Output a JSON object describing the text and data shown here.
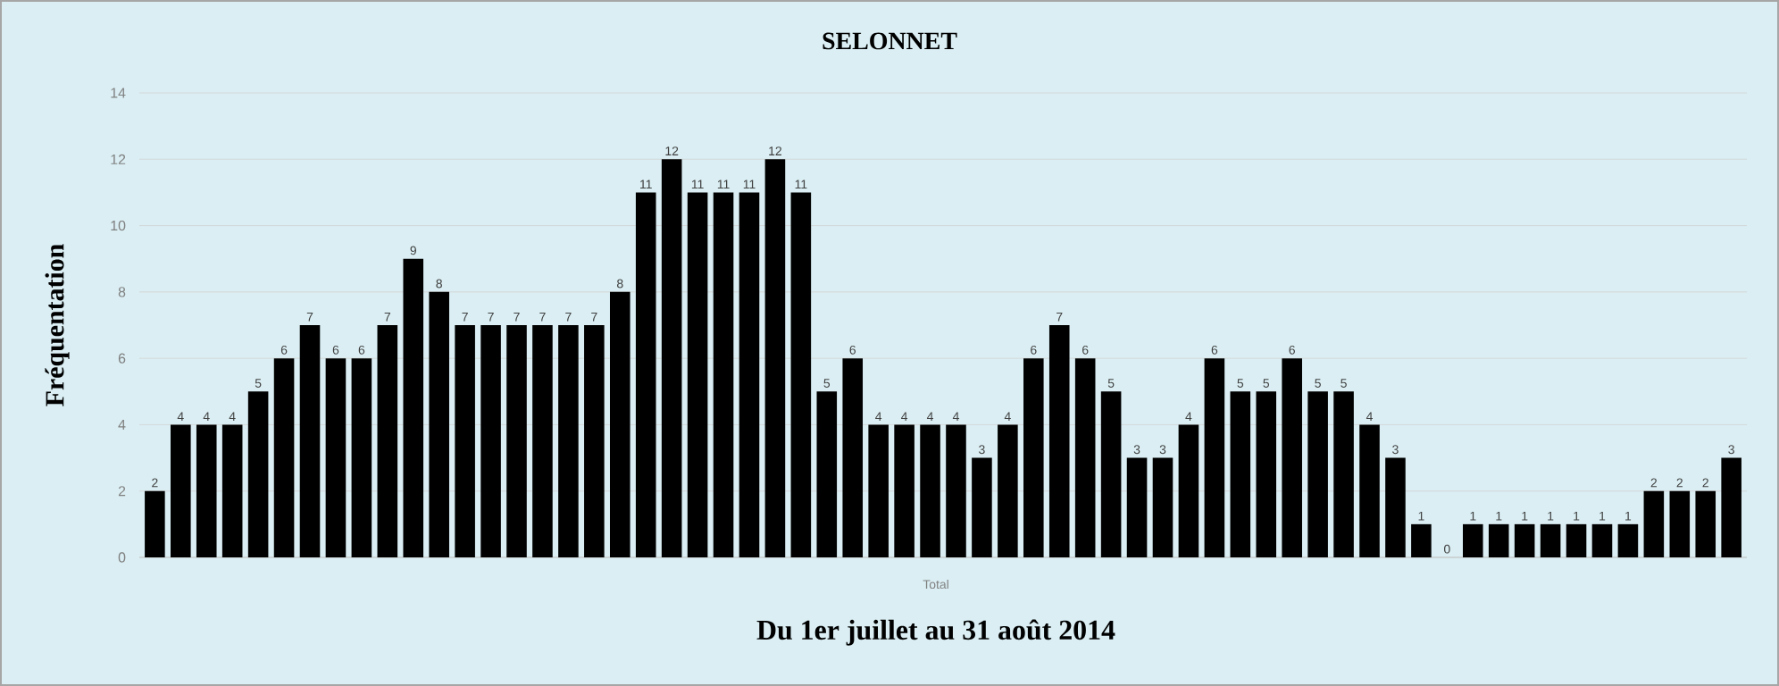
{
  "chart_data": {
    "type": "bar",
    "title": "SELONNET",
    "xlabel": "Du 1er juillet au 31 août 2014",
    "ylabel": "Fréquentation",
    "annotations": [
      "Total"
    ],
    "categories": [
      null,
      null,
      null,
      null,
      null,
      null,
      null,
      null,
      null,
      null,
      null,
      null,
      null,
      null,
      null,
      null,
      null,
      null,
      null,
      null,
      null,
      null,
      null,
      null,
      null,
      null,
      null,
      null,
      null,
      null,
      null,
      null,
      null,
      null,
      null,
      null,
      null,
      null,
      null,
      null,
      null,
      null,
      null,
      null,
      null,
      null,
      null,
      null,
      null,
      null,
      null,
      null,
      null,
      null,
      null,
      null,
      null,
      null,
      null,
      null,
      null,
      null
    ],
    "values": [
      2,
      4,
      4,
      4,
      5,
      6,
      7,
      6,
      6,
      7,
      9,
      8,
      7,
      7,
      7,
      7,
      7,
      7,
      8,
      11,
      12,
      11,
      11,
      11,
      12,
      11,
      5,
      6,
      4,
      4,
      4,
      4,
      3,
      4,
      6,
      7,
      6,
      5,
      3,
      3,
      4,
      6,
      5,
      5,
      6,
      5,
      5,
      4,
      3,
      1,
      0,
      1,
      1,
      1,
      1,
      1,
      1,
      1,
      2,
      2,
      2,
      3
    ],
    "color": "#000000",
    "ylim": [
      0,
      14
    ],
    "yticks": [
      0,
      2,
      4,
      6,
      8,
      10,
      12,
      14
    ],
    "grid": "y",
    "data_labels": true
  }
}
